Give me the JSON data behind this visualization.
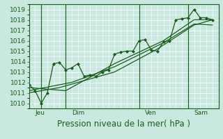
{
  "bg_color": "#c8e8e0",
  "plot_bg_color": "#c8e8e0",
  "grid_color": "#ffffff",
  "line_color": "#1a5c1a",
  "marker_color": "#1a5c1a",
  "xlabel": "Pression niveau de la mer( hPa )",
  "ylim": [
    1009.5,
    1019.5
  ],
  "yticks": [
    1010,
    1011,
    1012,
    1013,
    1014,
    1015,
    1016,
    1017,
    1018,
    1019
  ],
  "day_labels": [
    "Jeu",
    "Dim",
    "Ven",
    "Sam"
  ],
  "day_positions": [
    0.5,
    3.5,
    9.5,
    13.5
  ],
  "vline_positions": [
    1.0,
    3.0,
    9.0,
    13.0
  ],
  "series1_x": [
    0.0,
    0.5,
    1.0,
    1.5,
    2.0,
    2.5,
    3.0,
    3.5,
    4.0,
    4.5,
    5.0,
    5.5,
    6.0,
    6.5,
    7.0,
    7.5,
    8.0,
    8.5,
    9.0,
    9.5,
    10.0,
    10.5,
    11.0,
    11.5,
    12.0,
    12.5,
    13.0,
    13.5,
    14.0,
    14.5,
    15.0
  ],
  "series1_y": [
    1011.8,
    1011.2,
    1010.0,
    1011.0,
    1013.8,
    1013.9,
    1013.2,
    1013.4,
    1013.8,
    1012.6,
    1012.7,
    1012.6,
    1013.0,
    1013.2,
    1014.7,
    1014.9,
    1015.0,
    1015.0,
    1016.0,
    1016.1,
    1015.1,
    1015.0,
    1015.9,
    1016.0,
    1018.0,
    1018.1,
    1018.2,
    1019.0,
    1018.2,
    1018.2,
    1018.0
  ],
  "series2_x": [
    0.0,
    3.5,
    7.0,
    11.0,
    13.5,
    15.0
  ],
  "series2_y": [
    1011.2,
    1012.0,
    1013.5,
    1015.8,
    1017.6,
    1017.5
  ],
  "series3_x": [
    0.0,
    3.0,
    7.0,
    11.0,
    13.5,
    15.0
  ],
  "series3_y": [
    1011.5,
    1011.2,
    1013.8,
    1016.0,
    1018.0,
    1018.0
  ],
  "series4_x": [
    0.0,
    2.5,
    7.0,
    10.5,
    13.5,
    15.0
  ],
  "series4_y": [
    1011.0,
    1011.5,
    1013.0,
    1015.2,
    1017.5,
    1018.0
  ],
  "xlim": [
    0.0,
    15.5
  ],
  "xtick_fontsize": 6.5,
  "ytick_fontsize": 6.5,
  "xlabel_fontsize": 8.5
}
